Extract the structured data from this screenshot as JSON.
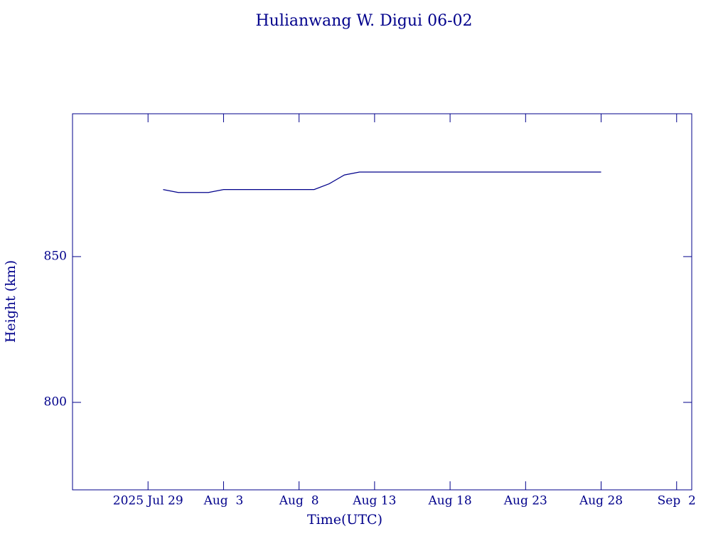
{
  "chart_data": {
    "type": "line",
    "title": "Hulianwang W. Digui 06-02",
    "x_label": "Time(UTC)",
    "y_label": "Height (km)",
    "x": [
      "2025-07-30",
      "2025-07-31",
      "2025-08-01",
      "2025-08-02",
      "2025-08-03",
      "2025-08-04",
      "2025-08-05",
      "2025-08-06",
      "2025-08-07",
      "2025-08-08",
      "2025-08-09",
      "2025-08-10",
      "2025-08-11",
      "2025-08-12",
      "2025-08-13",
      "2025-08-14",
      "2025-08-15",
      "2025-08-16",
      "2025-08-17",
      "2025-08-18",
      "2025-08-19",
      "2025-08-20",
      "2025-08-21",
      "2025-08-22",
      "2025-08-23",
      "2025-08-24",
      "2025-08-25",
      "2025-08-26",
      "2025-08-27",
      "2025-08-28"
    ],
    "series": [
      {
        "color": "#00008b",
        "values": [
          873,
          872,
          872,
          872,
          873,
          873,
          873,
          873,
          873,
          873,
          873,
          875,
          878,
          879,
          879,
          879,
          879,
          879,
          879,
          879,
          879,
          879,
          879,
          879,
          879,
          879,
          879,
          879,
          879,
          879
        ]
      }
    ],
    "xlim": [
      "2025-07-24",
      "2025-09-03"
    ],
    "xticks": [
      {
        "value": "2025-07-29",
        "label": "2025 Jul 29"
      },
      {
        "value": "2025-08-03",
        "label": "Aug  3"
      },
      {
        "value": "2025-08-08",
        "label": "Aug  8"
      },
      {
        "value": "2025-08-13",
        "label": "Aug 13"
      },
      {
        "value": "2025-08-18",
        "label": "Aug 18"
      },
      {
        "value": "2025-08-23",
        "label": "Aug 23"
      },
      {
        "value": "2025-08-28",
        "label": "Aug 28"
      },
      {
        "value": "2025-09-02",
        "label": "Sep  2"
      }
    ],
    "ylim": [
      770,
      899
    ],
    "yticks": [
      800,
      850
    ]
  }
}
